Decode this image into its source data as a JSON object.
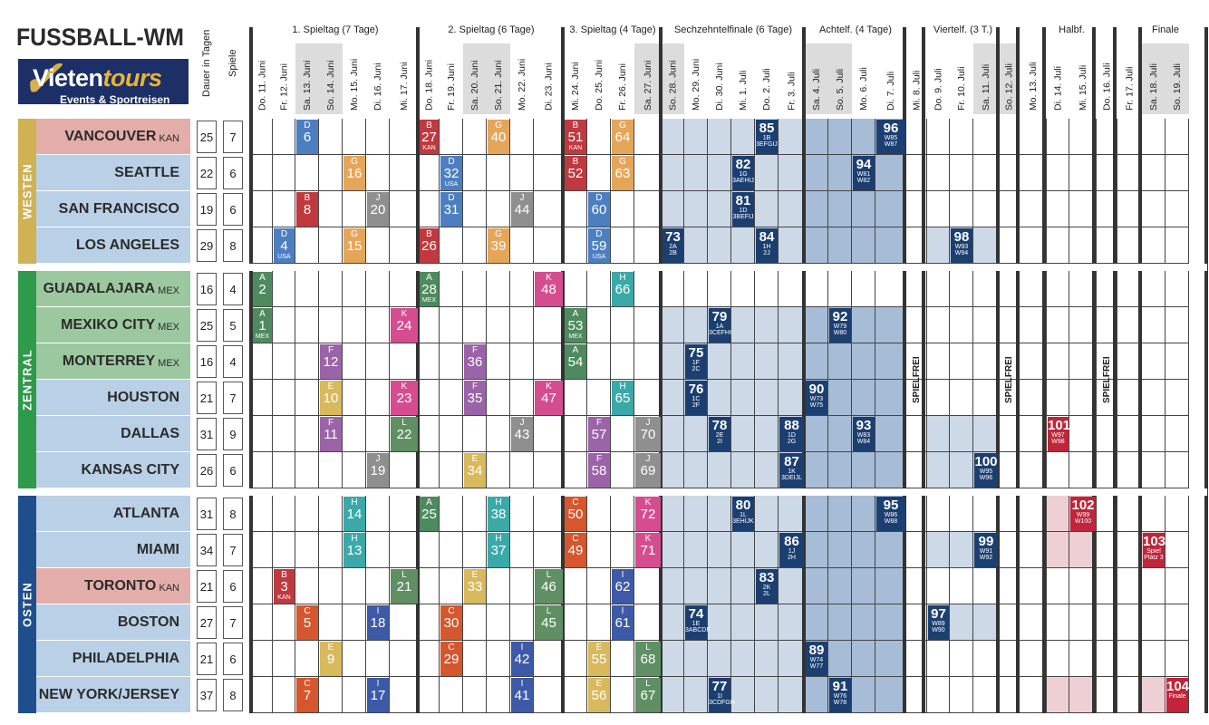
{
  "title": "FUSSBALL-WM",
  "logo": {
    "word1": "Vieten",
    "word2": "tours",
    "tagline": "Events & Sportreisen"
  },
  "labels": {
    "duration": "Dauer in Tagen",
    "games": "Spiele",
    "spielfrei": "SPIELFREI"
  },
  "phases": [
    "1. Spieltag (7 Tage)",
    "2. Spieltag (6 Tage)",
    "3. Spieltag (4 Tage)",
    "Sechzehntelfinale (6 Tage)",
    "Achtelf. (4 Tage)",
    "Viertelf. (3 T.)",
    "Halbf.",
    "Finale"
  ],
  "days": [
    "Do. 11. Juni",
    "Fr. 12. Juni",
    "Sa. 13. Juni",
    "So. 14. Juni",
    "Mo. 15. Juni",
    "Di. 16. Juni",
    "Mi. 17. Juni",
    "Do. 18. Juni",
    "Fr. 19. Juni",
    "Sa. 20. Juni",
    "So. 21. Juni",
    "Mo. 22. Juni",
    "Di. 23. Juni",
    "Mi. 24. Juni",
    "Do. 25. Juni",
    "Fr. 26. Juni",
    "Sa. 27. Juni",
    "So. 28. Juni",
    "Mo. 29. Juni",
    "Di. 30. Juni",
    "Mi. 1. Juli",
    "Do. 2. Juli",
    "Fr. 3. Juli",
    "Sa. 4. Juli",
    "So. 5. Juli",
    "Mo. 6. Juli",
    "Di. 7. Juli",
    "Mi. 8. Juli",
    "Do. 9. Juli",
    "Fr. 10. Juli",
    "Sa. 11. Juli",
    "So. 12. Juli",
    "Mo. 13. Juli",
    "Di. 14. Juli",
    "Mi. 15. Juli",
    "Do. 16. Juli",
    "Fr. 17. Juli",
    "Sa. 18. Juli",
    "So. 19. Juli"
  ],
  "regions": [
    {
      "name": "WESTEN",
      "color": "#cfb253"
    },
    {
      "name": "ZENTRAL",
      "color": "#2e9a4a"
    },
    {
      "name": "OSTEN",
      "color": "#1e4e8c"
    }
  ],
  "cities": [
    {
      "name": "VANCOUVER",
      "suffix": "KAN",
      "days": "25",
      "games": "7"
    },
    {
      "name": "SEATTLE",
      "suffix": "",
      "days": "22",
      "games": "6"
    },
    {
      "name": "SAN FRANCISCO",
      "suffix": "",
      "days": "19",
      "games": "6"
    },
    {
      "name": "LOS ANGELES",
      "suffix": "",
      "days": "29",
      "games": "8"
    },
    {
      "name": "GUADALAJARA",
      "suffix": "MEX",
      "days": "16",
      "games": "4"
    },
    {
      "name": "MEXIKO CITY",
      "suffix": "MEX",
      "days": "25",
      "games": "5"
    },
    {
      "name": "MONTERREY",
      "suffix": "MEX",
      "days": "16",
      "games": "4"
    },
    {
      "name": "HOUSTON",
      "suffix": "",
      "days": "21",
      "games": "7"
    },
    {
      "name": "DALLAS",
      "suffix": "",
      "days": "31",
      "games": "9"
    },
    {
      "name": "KANSAS CITY",
      "suffix": "",
      "days": "26",
      "games": "6"
    },
    {
      "name": "ATLANTA",
      "suffix": "",
      "days": "31",
      "games": "8"
    },
    {
      "name": "MIAMI",
      "suffix": "",
      "days": "34",
      "games": "7"
    },
    {
      "name": "TORONTO",
      "suffix": "KAN",
      "days": "21",
      "games": "6"
    },
    {
      "name": "BOSTON",
      "suffix": "",
      "days": "27",
      "games": "7"
    },
    {
      "name": "PHILADELPHIA",
      "suffix": "",
      "days": "21",
      "games": "6"
    },
    {
      "name": "NEW YORK/JERSEY",
      "suffix": "",
      "days": "37",
      "games": "8"
    }
  ],
  "group_colors": {
    "A": "#4e8a5f",
    "B": "#c0393f",
    "C": "#d6562e",
    "D": "#4d7fc0",
    "E": "#d8b95c",
    "F": "#9b63a8",
    "G": "#e6a65a",
    "H": "#3aa9a8",
    "I": "#3d5aa8",
    "J": "#8f8f8f",
    "K": "#d54d8f",
    "L": "#5f8f63"
  },
  "ko_color": "#1c3f72",
  "final_color": "#c0253a",
  "group_matches": [
    {
      "row": 0,
      "day": 2,
      "g": "D",
      "n": "6",
      "s": ""
    },
    {
      "row": 0,
      "day": 7,
      "g": "B",
      "n": "27",
      "s": "KAN"
    },
    {
      "row": 0,
      "day": 10,
      "g": "G",
      "n": "40",
      "s": ""
    },
    {
      "row": 0,
      "day": 13,
      "g": "B",
      "n": "51",
      "s": "KAN"
    },
    {
      "row": 0,
      "day": 15,
      "g": "G",
      "n": "64",
      "s": ""
    },
    {
      "row": 1,
      "day": 4,
      "g": "G",
      "n": "16",
      "s": ""
    },
    {
      "row": 1,
      "day": 8,
      "g": "D",
      "n": "32",
      "s": "USA"
    },
    {
      "row": 1,
      "day": 13,
      "g": "B",
      "n": "52",
      "s": ""
    },
    {
      "row": 1,
      "day": 15,
      "g": "G",
      "n": "63",
      "s": ""
    },
    {
      "row": 2,
      "day": 2,
      "g": "B",
      "n": "8",
      "s": ""
    },
    {
      "row": 2,
      "day": 5,
      "g": "J",
      "n": "20",
      "s": ""
    },
    {
      "row": 2,
      "day": 8,
      "g": "D",
      "n": "31",
      "s": ""
    },
    {
      "row": 2,
      "day": 11,
      "g": "J",
      "n": "44",
      "s": ""
    },
    {
      "row": 2,
      "day": 14,
      "g": "D",
      "n": "60",
      "s": ""
    },
    {
      "row": 3,
      "day": 1,
      "g": "D",
      "n": "4",
      "s": "USA"
    },
    {
      "row": 3,
      "day": 4,
      "g": "G",
      "n": "15",
      "s": ""
    },
    {
      "row": 3,
      "day": 7,
      "g": "B",
      "n": "26",
      "s": ""
    },
    {
      "row": 3,
      "day": 10,
      "g": "G",
      "n": "39",
      "s": ""
    },
    {
      "row": 3,
      "day": 14,
      "g": "D",
      "n": "59",
      "s": "USA"
    },
    {
      "row": 4,
      "day": 0,
      "g": "A",
      "n": "2",
      "s": ""
    },
    {
      "row": 4,
      "day": 7,
      "g": "A",
      "n": "28",
      "s": "MEX"
    },
    {
      "row": 4,
      "day": 12,
      "g": "K",
      "n": "48",
      "s": ""
    },
    {
      "row": 4,
      "day": 15,
      "g": "H",
      "n": "66",
      "s": ""
    },
    {
      "row": 5,
      "day": 0,
      "g": "A",
      "n": "1",
      "s": "MEX"
    },
    {
      "row": 5,
      "day": 6,
      "g": "K",
      "n": "24",
      "s": ""
    },
    {
      "row": 5,
      "day": 13,
      "g": "A",
      "n": "53",
      "s": "MEX"
    },
    {
      "row": 6,
      "day": 3,
      "g": "F",
      "n": "12",
      "s": ""
    },
    {
      "row": 6,
      "day": 9,
      "g": "F",
      "n": "36",
      "s": ""
    },
    {
      "row": 6,
      "day": 13,
      "g": "A",
      "n": "54",
      "s": ""
    },
    {
      "row": 7,
      "day": 3,
      "g": "E",
      "n": "10",
      "s": ""
    },
    {
      "row": 7,
      "day": 6,
      "g": "K",
      "n": "23",
      "s": ""
    },
    {
      "row": 7,
      "day": 9,
      "g": "F",
      "n": "35",
      "s": ""
    },
    {
      "row": 7,
      "day": 12,
      "g": "K",
      "n": "47",
      "s": ""
    },
    {
      "row": 7,
      "day": 15,
      "g": "H",
      "n": "65",
      "s": ""
    },
    {
      "row": 8,
      "day": 3,
      "g": "F",
      "n": "11",
      "s": ""
    },
    {
      "row": 8,
      "day": 6,
      "g": "L",
      "n": "22",
      "s": ""
    },
    {
      "row": 8,
      "day": 11,
      "g": "J",
      "n": "43",
      "s": ""
    },
    {
      "row": 8,
      "day": 14,
      "g": "F",
      "n": "57",
      "s": ""
    },
    {
      "row": 8,
      "day": 16,
      "g": "J",
      "n": "70",
      "s": ""
    },
    {
      "row": 9,
      "day": 5,
      "g": "J",
      "n": "19",
      "s": ""
    },
    {
      "row": 9,
      "day": 9,
      "g": "E",
      "n": "34",
      "s": ""
    },
    {
      "row": 9,
      "day": 14,
      "g": "F",
      "n": "58",
      "s": ""
    },
    {
      "row": 9,
      "day": 16,
      "g": "J",
      "n": "69",
      "s": ""
    },
    {
      "row": 10,
      "day": 4,
      "g": "H",
      "n": "14",
      "s": ""
    },
    {
      "row": 10,
      "day": 7,
      "g": "A",
      "n": "25",
      "s": ""
    },
    {
      "row": 10,
      "day": 10,
      "g": "H",
      "n": "38",
      "s": ""
    },
    {
      "row": 10,
      "day": 13,
      "g": "C",
      "n": "50",
      "s": ""
    },
    {
      "row": 10,
      "day": 16,
      "g": "K",
      "n": "72",
      "s": ""
    },
    {
      "row": 11,
      "day": 4,
      "g": "H",
      "n": "13",
      "s": ""
    },
    {
      "row": 11,
      "day": 10,
      "g": "H",
      "n": "37",
      "s": ""
    },
    {
      "row": 11,
      "day": 13,
      "g": "C",
      "n": "49",
      "s": ""
    },
    {
      "row": 11,
      "day": 16,
      "g": "K",
      "n": "71",
      "s": ""
    },
    {
      "row": 12,
      "day": 1,
      "g": "B",
      "n": "3",
      "s": "KAN"
    },
    {
      "row": 12,
      "day": 6,
      "g": "L",
      "n": "21",
      "s": ""
    },
    {
      "row": 12,
      "day": 9,
      "g": "E",
      "n": "33",
      "s": ""
    },
    {
      "row": 12,
      "day": 12,
      "g": "L",
      "n": "46",
      "s": ""
    },
    {
      "row": 12,
      "day": 15,
      "g": "I",
      "n": "62",
      "s": ""
    },
    {
      "row": 13,
      "day": 2,
      "g": "C",
      "n": "5",
      "s": ""
    },
    {
      "row": 13,
      "day": 5,
      "g": "I",
      "n": "18",
      "s": ""
    },
    {
      "row": 13,
      "day": 8,
      "g": "C",
      "n": "30",
      "s": ""
    },
    {
      "row": 13,
      "day": 12,
      "g": "L",
      "n": "45",
      "s": ""
    },
    {
      "row": 13,
      "day": 15,
      "g": "I",
      "n": "61",
      "s": ""
    },
    {
      "row": 14,
      "day": 3,
      "g": "E",
      "n": "9",
      "s": ""
    },
    {
      "row": 14,
      "day": 8,
      "g": "C",
      "n": "29",
      "s": ""
    },
    {
      "row": 14,
      "day": 11,
      "g": "I",
      "n": "42",
      "s": ""
    },
    {
      "row": 14,
      "day": 14,
      "g": "E",
      "n": "55",
      "s": ""
    },
    {
      "row": 14,
      "day": 16,
      "g": "L",
      "n": "68",
      "s": ""
    },
    {
      "row": 15,
      "day": 2,
      "g": "C",
      "n": "7",
      "s": ""
    },
    {
      "row": 15,
      "day": 5,
      "g": "I",
      "n": "17",
      "s": ""
    },
    {
      "row": 15,
      "day": 11,
      "g": "I",
      "n": "41",
      "s": ""
    },
    {
      "row": 15,
      "day": 14,
      "g": "E",
      "n": "56",
      "s": ""
    },
    {
      "row": 15,
      "day": 16,
      "g": "L",
      "n": "67",
      "s": ""
    }
  ],
  "ko_matches": [
    {
      "row": 0,
      "day": 21,
      "n": "85",
      "s": "1B",
      "s2": "3EFGIJ",
      "final": false
    },
    {
      "row": 0,
      "day": 26,
      "n": "96",
      "s": "W85",
      "s2": "W87",
      "final": false
    },
    {
      "row": 1,
      "day": 20,
      "n": "82",
      "s": "1G",
      "s2": "3AEHIJ",
      "final": false
    },
    {
      "row": 1,
      "day": 25,
      "n": "94",
      "s": "W81",
      "s2": "W82",
      "final": false
    },
    {
      "row": 2,
      "day": 20,
      "n": "81",
      "s": "1D",
      "s2": "3BEFIJ",
      "final": false
    },
    {
      "row": 3,
      "day": 17,
      "n": "73",
      "s": "2A",
      "s2": "2B",
      "final": false
    },
    {
      "row": 3,
      "day": 21,
      "n": "84",
      "s": "1H",
      "s2": "2J",
      "final": false
    },
    {
      "row": 3,
      "day": 29,
      "n": "98",
      "s": "W93",
      "s2": "W94",
      "final": false
    },
    {
      "row": 5,
      "day": 19,
      "n": "79",
      "s": "1A",
      "s2": "3CEFHI",
      "final": false
    },
    {
      "row": 5,
      "day": 24,
      "n": "92",
      "s": "W79",
      "s2": "W80",
      "final": false
    },
    {
      "row": 6,
      "day": 18,
      "n": "75",
      "s": "1F",
      "s2": "2C",
      "final": false
    },
    {
      "row": 7,
      "day": 18,
      "n": "76",
      "s": "1C",
      "s2": "2F",
      "final": false
    },
    {
      "row": 7,
      "day": 23,
      "n": "90",
      "s": "W73",
      "s2": "W75",
      "final": false
    },
    {
      "row": 8,
      "day": 19,
      "n": "78",
      "s": "2E",
      "s2": "2I",
      "final": false
    },
    {
      "row": 8,
      "day": 22,
      "n": "88",
      "s": "1D",
      "s2": "2G",
      "final": false
    },
    {
      "row": 8,
      "day": 25,
      "n": "93",
      "s": "W83",
      "s2": "W84",
      "final": false
    },
    {
      "row": 8,
      "day": 33,
      "n": "101",
      "s": "W97",
      "s2": "W98",
      "final": true
    },
    {
      "row": 9,
      "day": 22,
      "n": "87",
      "s": "1K",
      "s2": "3DEIJL",
      "final": false
    },
    {
      "row": 9,
      "day": 30,
      "n": "100",
      "s": "W95",
      "s2": "W96",
      "final": false
    },
    {
      "row": 10,
      "day": 20,
      "n": "80",
      "s": "1L",
      "s2": "3EHIJK",
      "final": false
    },
    {
      "row": 10,
      "day": 26,
      "n": "95",
      "s": "W86",
      "s2": "W88",
      "final": false
    },
    {
      "row": 10,
      "day": 34,
      "n": "102",
      "s": "W99",
      "s2": "W100",
      "final": true
    },
    {
      "row": 11,
      "day": 22,
      "n": "86",
      "s": "1J",
      "s2": "2H",
      "final": false
    },
    {
      "row": 11,
      "day": 30,
      "n": "99",
      "s": "W91",
      "s2": "W92",
      "final": false
    },
    {
      "row": 11,
      "day": 37,
      "n": "103",
      "s": "Spiel",
      "s2": "Platz 3",
      "final": true
    },
    {
      "row": 12,
      "day": 21,
      "n": "83",
      "s": "2K",
      "s2": "2L",
      "final": false
    },
    {
      "row": 13,
      "day": 18,
      "n": "74",
      "s": "1E",
      "s2": "3ABCDF",
      "final": false
    },
    {
      "row": 13,
      "day": 28,
      "n": "97",
      "s": "W89",
      "s2": "W90",
      "final": false
    },
    {
      "row": 14,
      "day": 23,
      "n": "89",
      "s": "W74",
      "s2": "W77",
      "final": false
    },
    {
      "row": 15,
      "day": 19,
      "n": "77",
      "s": "1I",
      "s2": "3CDFGH",
      "final": false
    },
    {
      "row": 15,
      "day": 24,
      "n": "91",
      "s": "W76",
      "s2": "W78",
      "final": false
    },
    {
      "row": 15,
      "day": 38,
      "n": "104",
      "s": "Finale",
      "s2": "",
      "final": true
    }
  ]
}
